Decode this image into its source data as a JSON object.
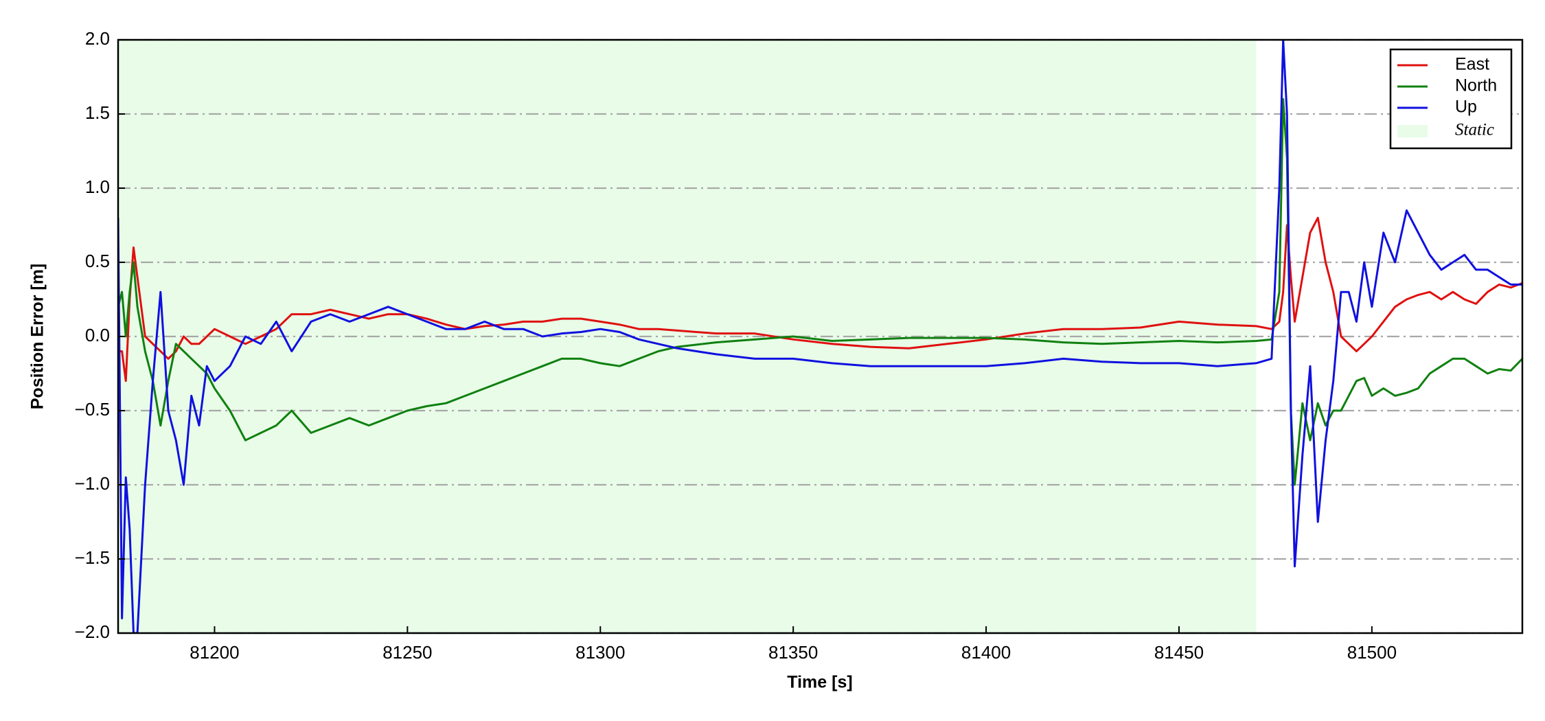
{
  "chart_data": {
    "type": "line",
    "xlabel": "Time [s]",
    "ylabel": "Position Error [m]",
    "xlim": [
      81175,
      81539
    ],
    "ylim": [
      -2.0,
      2.0
    ],
    "xticks": [
      81200,
      81250,
      81300,
      81350,
      81400,
      81450,
      81500
    ],
    "yticks": [
      {
        "value": -2.0,
        "label": "−2.0"
      },
      {
        "value": -1.5,
        "label": "−1.5"
      },
      {
        "value": -1.0,
        "label": "−1.0"
      },
      {
        "value": -0.5,
        "label": "−0.5"
      },
      {
        "value": 0.0,
        "label": "0.0"
      },
      0.5,
      {
        "value": 1.0,
        "label": "1.0"
      },
      1.5,
      {
        "value": 2.0,
        "label": "2.0"
      }
    ],
    "grid": true,
    "legend": "upper right",
    "shaded_region": {
      "xmin": 81175,
      "xmax": 81470,
      "label": "Static",
      "color": "#e8fce8"
    },
    "x": [
      81175,
      81176,
      81177,
      81178,
      81179,
      81180,
      81182,
      81184,
      81186,
      81188,
      81190,
      81192,
      81194,
      81196,
      81198,
      81200,
      81204,
      81208,
      81212,
      81216,
      81220,
      81225,
      81230,
      81235,
      81240,
      81245,
      81250,
      81255,
      81260,
      81265,
      81270,
      81275,
      81280,
      81285,
      81290,
      81295,
      81300,
      81305,
      81310,
      81315,
      81320,
      81330,
      81340,
      81350,
      81360,
      81370,
      81380,
      81390,
      81400,
      81410,
      81420,
      81430,
      81440,
      81450,
      81460,
      81470,
      81474,
      81476,
      81477,
      81478,
      81479,
      81480,
      81482,
      81484,
      81486,
      81488,
      81490,
      81492,
      81494,
      81496,
      81498,
      81500,
      81503,
      81506,
      81509,
      81512,
      81515,
      81518,
      81521,
      81524,
      81527,
      81530,
      81533,
      81536,
      81539
    ],
    "series": [
      {
        "name": "East",
        "color": "#e01010",
        "values": [
          -0.1,
          -0.1,
          -0.3,
          0.25,
          0.6,
          0.4,
          0.0,
          -0.05,
          -0.1,
          -0.15,
          -0.1,
          0.0,
          -0.05,
          -0.05,
          0.0,
          0.05,
          0.0,
          -0.05,
          0.0,
          0.05,
          0.15,
          0.15,
          0.18,
          0.15,
          0.12,
          0.15,
          0.15,
          0.12,
          0.08,
          0.05,
          0.07,
          0.08,
          0.1,
          0.1,
          0.12,
          0.12,
          0.1,
          0.08,
          0.05,
          0.05,
          0.04,
          0.02,
          0.02,
          -0.02,
          -0.05,
          -0.07,
          -0.08,
          -0.05,
          -0.02,
          0.02,
          0.05,
          0.05,
          0.06,
          0.1,
          0.08,
          0.07,
          0.05,
          0.1,
          0.3,
          0.75,
          0.4,
          0.1,
          0.4,
          0.7,
          0.8,
          0.5,
          0.3,
          0.0,
          -0.05,
          -0.1,
          -0.05,
          0.0,
          0.1,
          0.2,
          0.25,
          0.28,
          0.3,
          0.25,
          0.3,
          0.25,
          0.22,
          0.3,
          0.35,
          0.33,
          0.36
        ]
      },
      {
        "name": "North",
        "color": "#108010",
        "values": [
          0.2,
          0.3,
          0.0,
          0.3,
          0.5,
          0.2,
          -0.1,
          -0.3,
          -0.6,
          -0.3,
          -0.05,
          -0.1,
          -0.15,
          -0.2,
          -0.25,
          -0.35,
          -0.5,
          -0.7,
          -0.65,
          -0.6,
          -0.5,
          -0.65,
          -0.6,
          -0.55,
          -0.6,
          -0.55,
          -0.5,
          -0.47,
          -0.45,
          -0.4,
          -0.35,
          -0.3,
          -0.25,
          -0.2,
          -0.15,
          -0.15,
          -0.18,
          -0.2,
          -0.15,
          -0.1,
          -0.07,
          -0.04,
          -0.02,
          0.0,
          -0.03,
          -0.02,
          -0.01,
          -0.01,
          -0.01,
          -0.02,
          -0.04,
          -0.05,
          -0.04,
          -0.03,
          -0.04,
          -0.03,
          -0.02,
          0.3,
          1.6,
          1.2,
          -0.5,
          -1.0,
          -0.45,
          -0.7,
          -0.45,
          -0.6,
          -0.5,
          -0.5,
          -0.4,
          -0.3,
          -0.28,
          -0.4,
          -0.35,
          -0.4,
          -0.38,
          -0.35,
          -0.25,
          -0.2,
          -0.15,
          -0.15,
          -0.2,
          -0.25,
          -0.22,
          -0.23,
          -0.15
        ]
      },
      {
        "name": "Up",
        "color": "#1010e0",
        "values": [
          0.8,
          -1.9,
          -0.95,
          -1.3,
          -2.0,
          -2.0,
          -1.0,
          -0.3,
          0.3,
          -0.5,
          -0.7,
          -1.0,
          -0.4,
          -0.6,
          -0.2,
          -0.3,
          -0.2,
          0.0,
          -0.05,
          0.1,
          -0.1,
          0.1,
          0.15,
          0.1,
          0.15,
          0.2,
          0.15,
          0.1,
          0.05,
          0.05,
          0.1,
          0.05,
          0.05,
          0.0,
          0.02,
          0.03,
          0.05,
          0.03,
          -0.02,
          -0.05,
          -0.08,
          -0.12,
          -0.15,
          -0.15,
          -0.18,
          -0.2,
          -0.2,
          -0.2,
          -0.2,
          -0.18,
          -0.15,
          -0.17,
          -0.18,
          -0.18,
          -0.2,
          -0.18,
          -0.15,
          1.0,
          2.0,
          1.5,
          -0.5,
          -1.55,
          -0.8,
          -0.2,
          -1.25,
          -0.7,
          -0.3,
          0.3,
          0.3,
          0.1,
          0.5,
          0.2,
          0.7,
          0.5,
          0.85,
          0.7,
          0.55,
          0.45,
          0.5,
          0.55,
          0.45,
          0.45,
          0.4,
          0.35,
          0.35
        ]
      }
    ]
  }
}
